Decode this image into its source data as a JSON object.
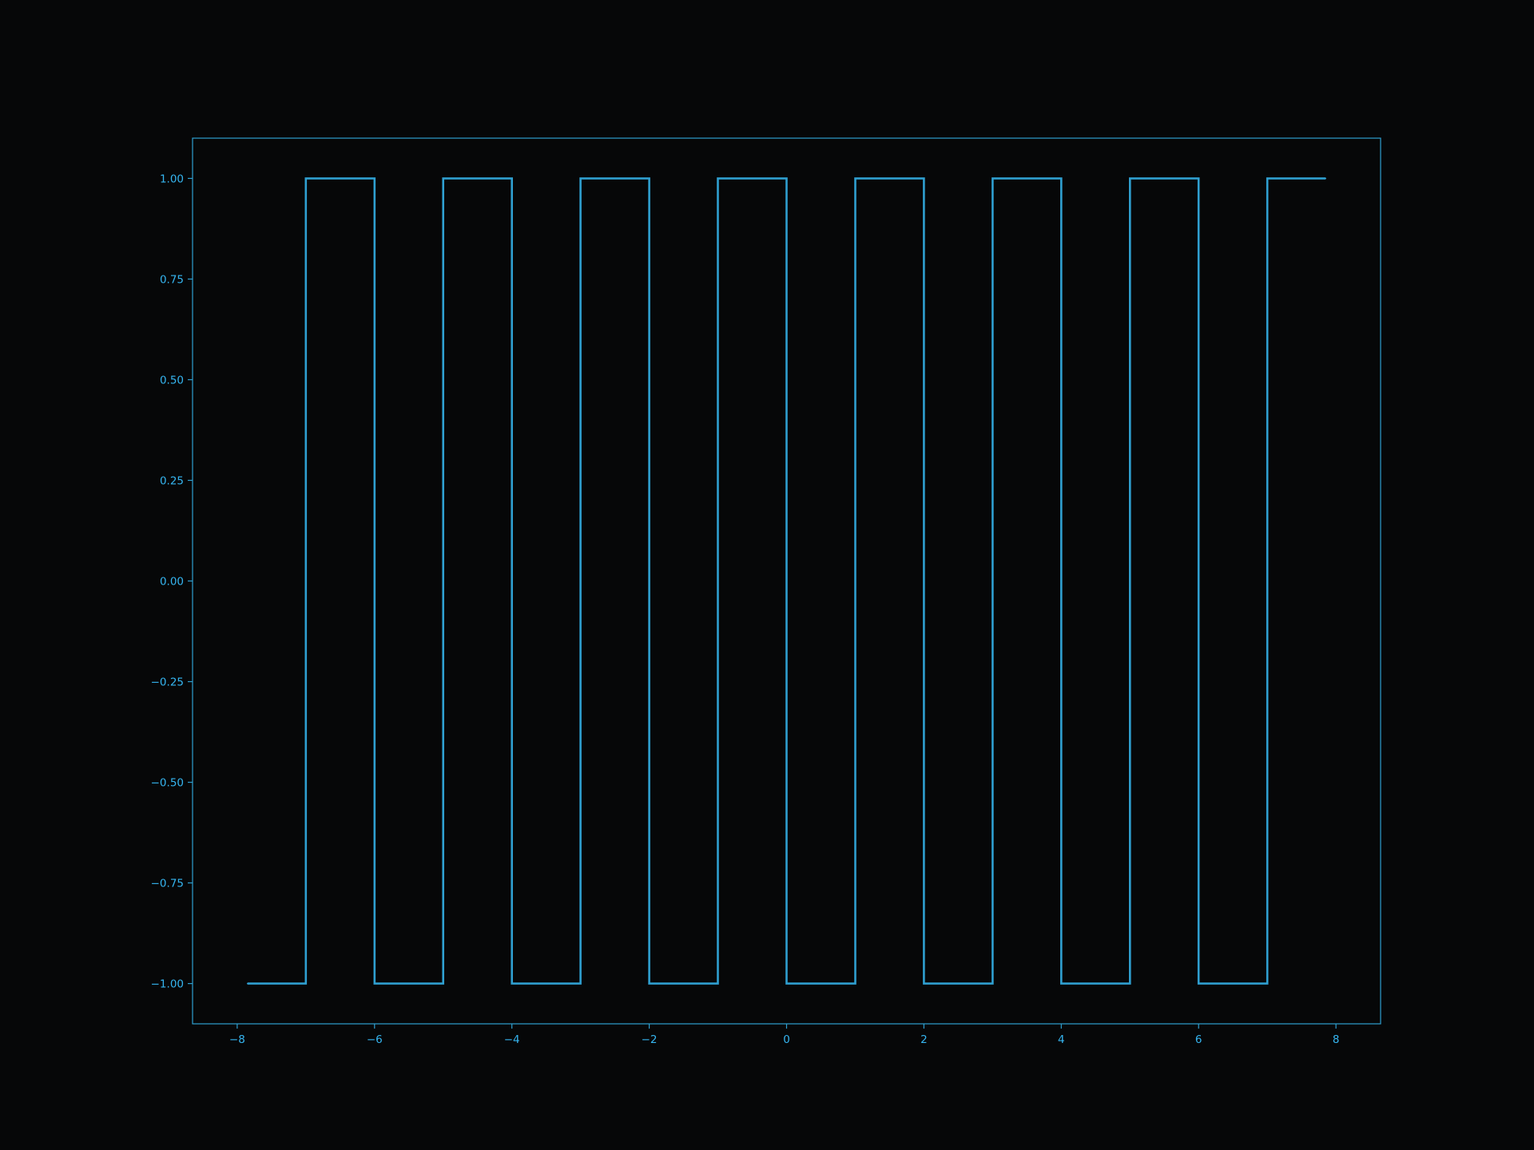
{
  "chart_data": {
    "type": "line",
    "title": "",
    "xlabel": "",
    "ylabel": "",
    "xlim": [
      -8.65,
      8.65
    ],
    "ylim": [
      -1.1,
      1.1
    ],
    "x_ticks": [
      -8,
      -6,
      -4,
      -2,
      0,
      2,
      4,
      6,
      8
    ],
    "x_tick_labels": [
      "−8",
      "−6",
      "−4",
      "−2",
      "0",
      "2",
      "4",
      "6",
      "8"
    ],
    "y_ticks": [
      1.0,
      0.75,
      0.5,
      0.25,
      0.0,
      -0.25,
      -0.5,
      -0.75,
      -1.0
    ],
    "y_tick_labels": [
      "1.00",
      "0.75",
      "0.50",
      "0.25",
      "0.00",
      "−0.25",
      "−0.50",
      "−0.75",
      "−1.00"
    ],
    "grid": false,
    "colors": {
      "background": "#060708",
      "axes": "#2f9fd0",
      "text": "#35b5f0",
      "line": "#2f9fd0"
    },
    "series": [
      {
        "x": [
          -7.85,
          -7.0,
          -7.0,
          -6.0,
          -6.0,
          -5.0,
          -5.0,
          -4.0,
          -4.0,
          -3.0,
          -3.0,
          -2.0,
          -2.0,
          -1.0,
          -1.0,
          0.0,
          0.0,
          1.0,
          1.0,
          2.0,
          2.0,
          3.0,
          3.0,
          4.0,
          4.0,
          5.0,
          5.0,
          6.0,
          6.0,
          7.0,
          7.0,
          7.85
        ],
        "y": [
          -1,
          -1,
          1,
          1,
          -1,
          -1,
          1,
          1,
          -1,
          -1,
          1,
          1,
          -1,
          -1,
          1,
          1,
          -1,
          -1,
          1,
          1,
          -1,
          -1,
          1,
          1,
          -1,
          -1,
          1,
          1,
          -1,
          -1,
          1,
          1
        ]
      }
    ]
  }
}
